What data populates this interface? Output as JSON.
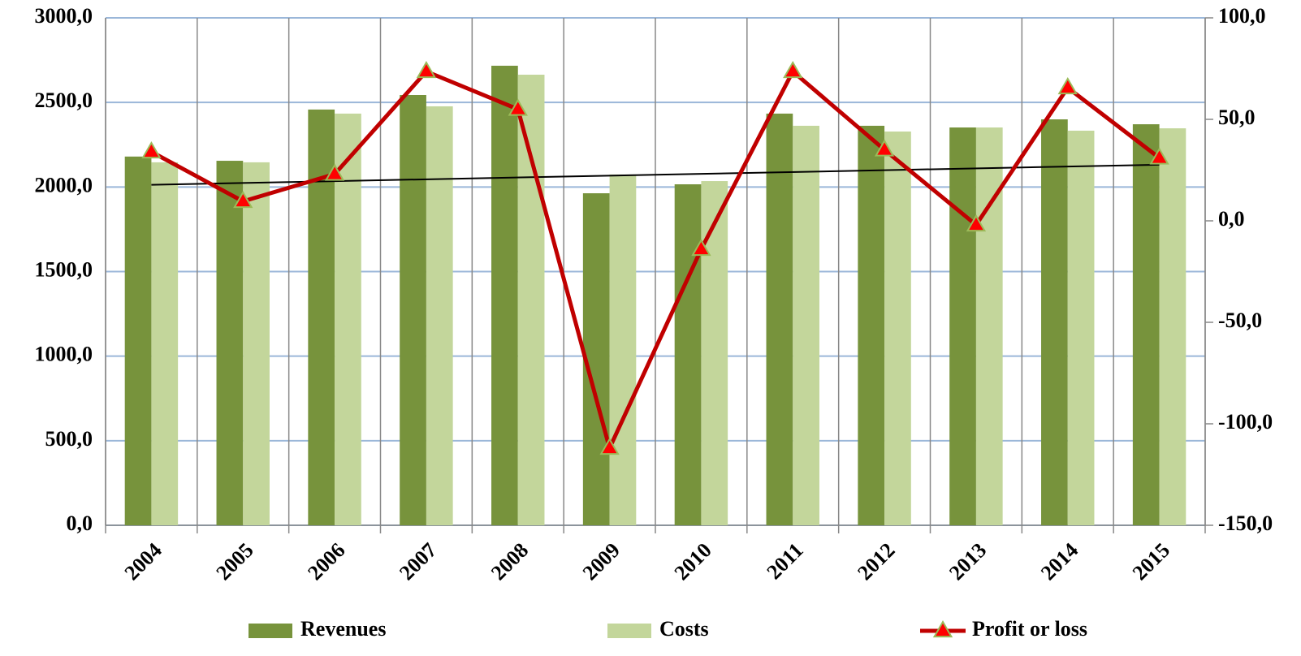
{
  "chart_data": {
    "type": "bar",
    "categories": [
      "2004",
      "2005",
      "2006",
      "2007",
      "2008",
      "2009",
      "2010",
      "2011",
      "2012",
      "2013",
      "2014",
      "2015"
    ],
    "series": [
      {
        "name": "Revenues",
        "color": "#77933c",
        "values": [
          2180,
          2155,
          2458,
          2544,
          2717,
          1963,
          2016,
          2434,
          2362,
          2352,
          2400,
          2371
        ]
      },
      {
        "name": "Costs",
        "color": "#c3d69b",
        "values": [
          2146,
          2146,
          2434,
          2477,
          2664,
          2074,
          2035,
          2362,
          2328,
          2352,
          2333,
          2347
        ]
      },
      {
        "name": "Profit or loss",
        "type": "line",
        "axis": "y2",
        "color": "#c00000",
        "marker_color": "#ff0000",
        "trendline": true,
        "values": [
          34,
          9.6,
          23,
          73.6,
          55,
          -112,
          -14,
          73.6,
          35,
          -2,
          65.6,
          31
        ]
      }
    ],
    "ylim": [
      0,
      3000
    ],
    "yticks": [
      {
        "value": 0,
        "label": "0,0"
      },
      {
        "value": 500,
        "label": "500,0"
      },
      {
        "value": 1000,
        "label": "1000,0"
      },
      {
        "value": 1500,
        "label": "1500,0"
      },
      {
        "value": 2000,
        "label": "2000,0"
      },
      {
        "value": 2500,
        "label": "2500,0"
      },
      {
        "value": 3000,
        "label": "3000,0"
      }
    ],
    "y2lim": [
      -150,
      100
    ],
    "y2ticks": [
      {
        "value": -150,
        "label": "-150,0"
      },
      {
        "value": -100,
        "label": "-100,0"
      },
      {
        "value": -50,
        "label": "-50,0"
      },
      {
        "value": 0,
        "label": "0,0"
      },
      {
        "value": 50,
        "label": "50,0"
      },
      {
        "value": 100,
        "label": "100,0"
      }
    ],
    "grid": true,
    "legend": "bottom"
  }
}
